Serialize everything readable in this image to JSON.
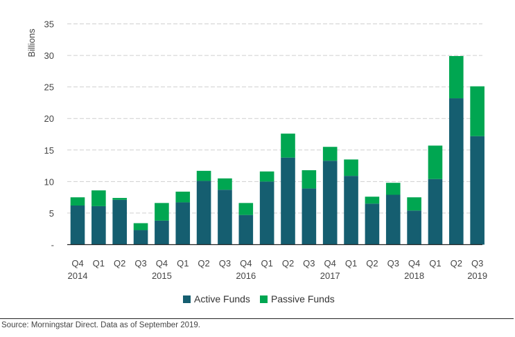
{
  "chart_data": {
    "type": "bar",
    "stacked": true,
    "title": "",
    "xlabel": "",
    "ylabel": "Billions",
    "ylim": [
      0,
      35
    ],
    "yticks": [
      0,
      5,
      10,
      15,
      20,
      25,
      30,
      35
    ],
    "ytick_labels": [
      "-",
      "5",
      "10",
      "15",
      "20",
      "25",
      "30",
      "35"
    ],
    "grid": true,
    "legend_position": "bottom-center",
    "categories": [
      "Q4 2014",
      "Q1 2015",
      "Q2 2015",
      "Q3 2015",
      "Q4 2015",
      "Q1 2016",
      "Q2 2016",
      "Q3 2016",
      "Q4 2016",
      "Q1 2017",
      "Q2 2017",
      "Q3 2017",
      "Q4 2017",
      "Q1 2018",
      "Q2 2018",
      "Q3 2018",
      "Q4 2018",
      "Q1 2019",
      "Q2 2019",
      "Q3 2019"
    ],
    "quarter_labels": [
      "Q4",
      "Q1",
      "Q2",
      "Q3",
      "Q4",
      "Q1",
      "Q2",
      "Q3",
      "Q4",
      "Q1",
      "Q2",
      "Q3",
      "Q4",
      "Q1",
      "Q2",
      "Q3",
      "Q4",
      "Q1",
      "Q2",
      "Q3"
    ],
    "year_labels": [
      "2014",
      "",
      "",
      "",
      "2015",
      "",
      "",
      "",
      "2016",
      "",
      "",
      "",
      "2017",
      "",
      "",
      "",
      "2018",
      "",
      "",
      "2019"
    ],
    "series": [
      {
        "name": "Active Funds",
        "color": "#155e70",
        "values": [
          6.2,
          6.1,
          7.1,
          2.3,
          3.8,
          6.7,
          10.1,
          8.7,
          4.7,
          10.0,
          13.8,
          8.9,
          13.3,
          10.9,
          6.5,
          7.9,
          5.4,
          10.4,
          23.2,
          17.2
        ]
      },
      {
        "name": "Passive Funds",
        "color": "#00a651",
        "values": [
          1.3,
          2.5,
          0.3,
          1.1,
          2.8,
          1.7,
          1.6,
          1.8,
          1.9,
          1.6,
          3.8,
          2.9,
          2.2,
          2.6,
          1.1,
          1.9,
          2.1,
          5.3,
          6.7,
          7.9
        ]
      }
    ]
  },
  "legend": {
    "items": [
      {
        "label": "Active Funds",
        "color": "#155e70"
      },
      {
        "label": "Passive Funds",
        "color": "#00a651"
      }
    ]
  },
  "footer": {
    "source": "Source: Morningstar Direct. Data as of September 2019."
  }
}
